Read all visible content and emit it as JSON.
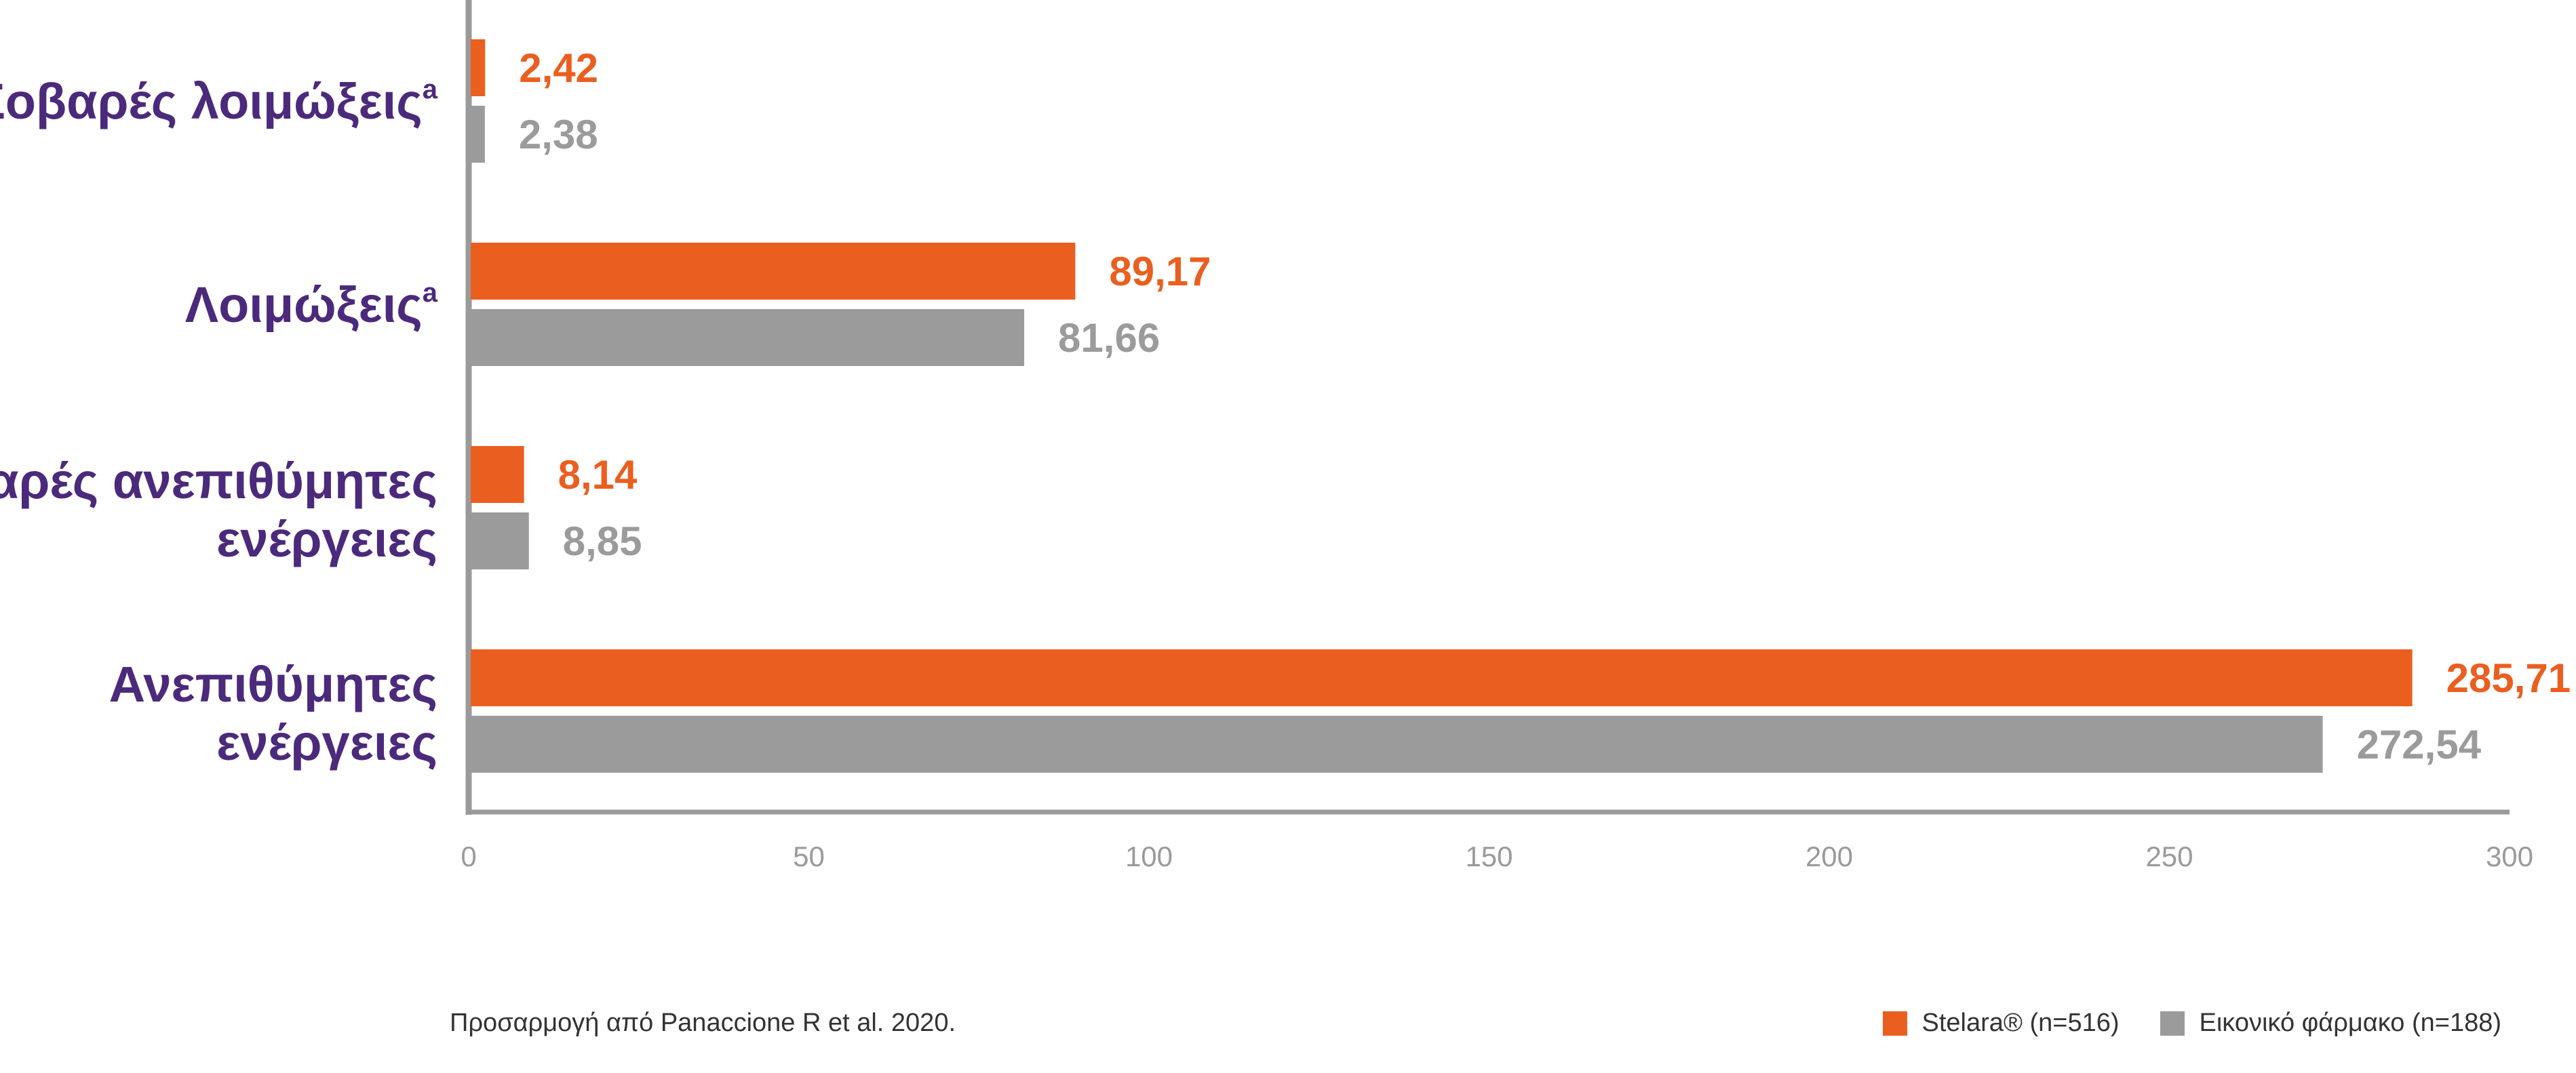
{
  "chart_data": {
    "type": "bar",
    "orientation": "horizontal",
    "categories": [
      [
        "Σοβαρές λοιμώξεις",
        "a"
      ],
      [
        "Λοιμώξεις",
        "a"
      ],
      [
        "Σοβαρές ανεπιθύμητες",
        "ενέργειες"
      ],
      [
        "Ανεπιθύμητες",
        "ενέργειες"
      ]
    ],
    "series": [
      {
        "name": "Stelara® (n=516)",
        "color": "#ea5f20",
        "values": [
          2.42,
          89.17,
          8.14,
          285.71
        ],
        "labels": [
          "2,42",
          "89,17",
          "8,14",
          "285,71"
        ]
      },
      {
        "name": "Εικονικό φάρμακο (n=188)",
        "color": "#9b9b9b",
        "values": [
          2.38,
          81.66,
          8.85,
          272.54
        ],
        "labels": [
          "2,38",
          "81,66",
          "8,85",
          "272,54"
        ]
      }
    ],
    "xlim": [
      0,
      300
    ],
    "xticks": [
      "0",
      "50",
      "100",
      "150",
      "200",
      "250",
      "300"
    ],
    "grid": false,
    "legend_position": "bottom-right"
  },
  "source_note": "Προσαρμογή από Panaccione R et al. 2020.",
  "colors": {
    "category_text": "#4b2a7b",
    "axis": "#9a9a9a"
  }
}
